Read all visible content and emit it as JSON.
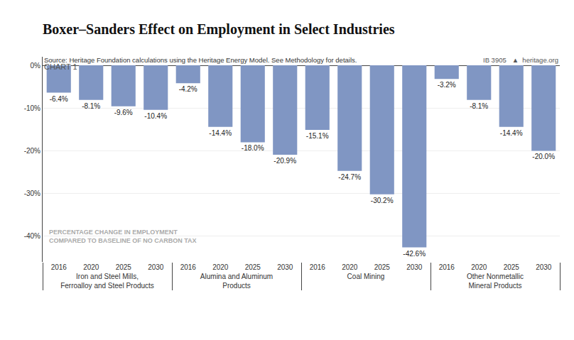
{
  "chart_data": {
    "type": "bar",
    "subtitle": "CHART 1",
    "title": "Boxer–Sanders Effect on Employment in Select Industries",
    "groups": [
      {
        "name": "Iron and Steel Mills,\nFerroalloy and Steel Products",
        "categories": [
          "2016",
          "2020",
          "2025",
          "2030"
        ],
        "values": [
          -6.4,
          -8.1,
          -9.6,
          -10.4
        ]
      },
      {
        "name": "Alumina and Aluminum\nProducts",
        "categories": [
          "2016",
          "2020",
          "2025",
          "2030"
        ],
        "values": [
          -4.2,
          -14.4,
          -18.0,
          -20.9
        ],
        "value_labels": [
          "-4.2%",
          "-14.4%",
          "-18.0%",
          "-20.9%"
        ]
      },
      {
        "name": "Coal Mining",
        "categories": [
          "2016",
          "2020",
          "2025",
          "2030"
        ],
        "values": [
          -15.1,
          -24.7,
          -30.2,
          -42.6
        ]
      },
      {
        "name": "Other Nonmetallic\nMineral Products",
        "categories": [
          "2016",
          "2020",
          "2025",
          "2030"
        ],
        "values": [
          -3.2,
          -8.1,
          -14.4,
          -20.0
        ],
        "value_labels": [
          "-3.2%",
          "-8.1%",
          "-14.4%",
          "-20.0%"
        ]
      }
    ],
    "color": "#8096c3",
    "ylim": [
      -46,
      2
    ],
    "yticks": [
      {
        "value": 0,
        "label": "0%"
      },
      {
        "value": -10,
        "label": "-10%"
      },
      {
        "value": -20,
        "label": "-20%"
      },
      {
        "value": -30,
        "label": "-30%"
      },
      {
        "value": -40,
        "label": "-40%"
      }
    ],
    "grid": true,
    "data_labels": true,
    "annotations": [
      "PERCENTAGE CHANGE IN EMPLOYMENT\nCOMPARED TO BASELINE OF NO CARBON TAX",
      "Source: Heritage Foundation calculations using the Heritage Energy Model. See Methodology for details.",
      "IB 3905   ▲  heritage.org"
    ]
  }
}
